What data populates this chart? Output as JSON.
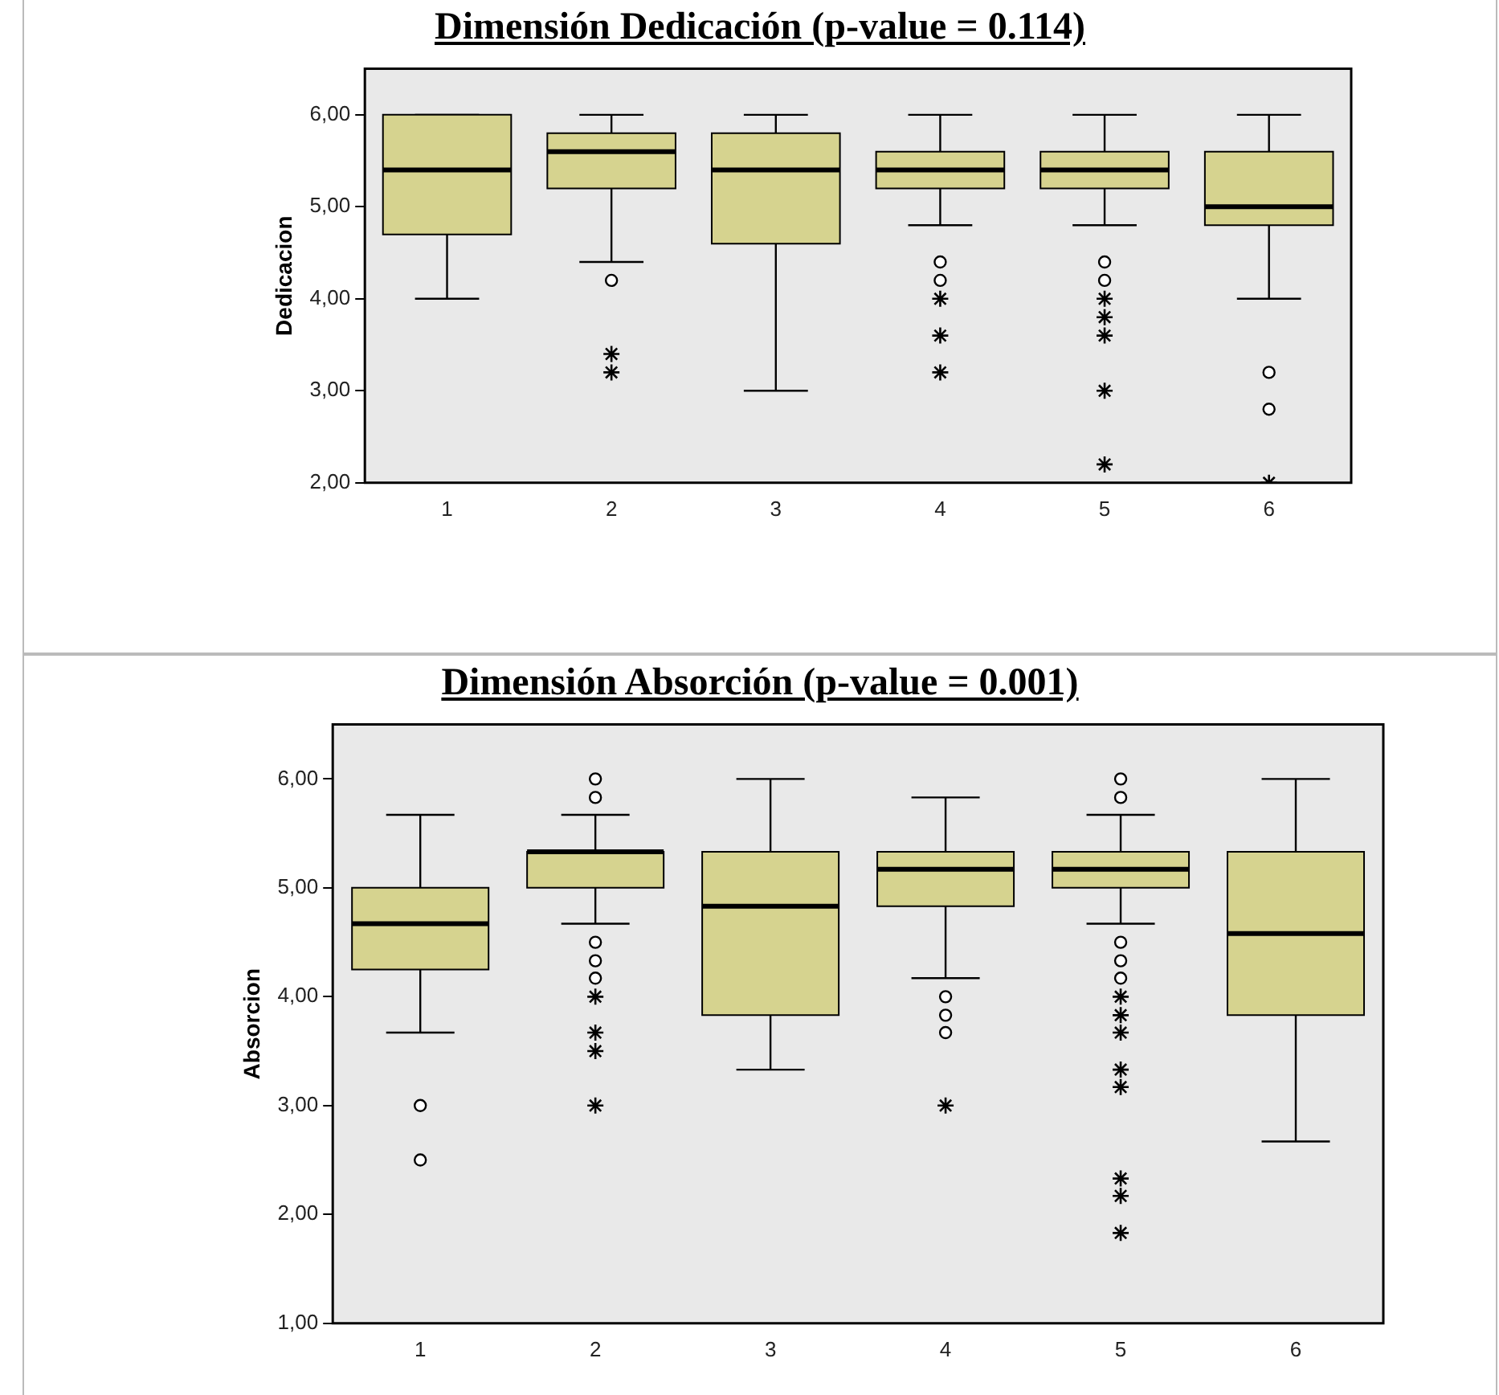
{
  "chart_data": [
    {
      "type": "box",
      "title": "Dimensión Dedicación (p-value = 0.114)",
      "ylabel": "Dedicacion",
      "categories": [
        "1",
        "2",
        "3",
        "4",
        "5",
        "6"
      ],
      "ylim": [
        2,
        6.5
      ],
      "yticks": [
        {
          "value": 2,
          "label": "2,00"
        },
        {
          "value": 3,
          "label": "3,00"
        },
        {
          "value": 4,
          "label": "4,00"
        },
        {
          "value": 5,
          "label": "5,00"
        },
        {
          "value": 6,
          "label": "6,00"
        }
      ],
      "grid": false,
      "series": [
        {
          "type": "box",
          "color": "#d6d38f",
          "boxes": [
            {
              "low": 4.0,
              "q1": 4.7,
              "median": 5.4,
              "q3": 6.0,
              "high": 6.0
            },
            {
              "low": 4.4,
              "q1": 5.2,
              "median": 5.6,
              "q3": 5.8,
              "high": 6.0,
              "outliers": [
                4.2
              ]
            },
            {
              "low": 3.0,
              "q1": 4.6,
              "median": 5.4,
              "q3": 5.8,
              "high": 6.0
            },
            {
              "low": 4.8,
              "q1": 5.2,
              "median": 5.4,
              "q3": 5.6,
              "high": 6.0,
              "outliers": [
                4.4,
                4.2
              ]
            },
            {
              "low": 4.8,
              "q1": 5.2,
              "median": 5.4,
              "q3": 5.6,
              "high": 6.0,
              "outliers": [
                4.4,
                4.2
              ]
            },
            {
              "low": 4.0,
              "q1": 4.8,
              "median": 5.0,
              "q3": 5.6,
              "high": 6.0,
              "outliers": [
                3.2,
                2.8
              ]
            }
          ]
        },
        {
          "type": "scatter",
          "marker": "cross",
          "color": "#000000",
          "x": [
            "2",
            "2",
            "4",
            "4",
            "4",
            "5",
            "5",
            "5",
            "5",
            "5",
            "6"
          ],
          "values": [
            3.4,
            3.2,
            4.0,
            3.6,
            3.2,
            4.0,
            3.8,
            3.6,
            3.0,
            2.2,
            2.0
          ]
        }
      ]
    },
    {
      "type": "box",
      "title": "Dimensión Absorción (p-value = 0.001)",
      "ylabel": "Absorcion",
      "categories": [
        "1",
        "2",
        "3",
        "4",
        "5",
        "6"
      ],
      "ylim": [
        1,
        6.5
      ],
      "yticks": [
        {
          "value": 1,
          "label": "1,00"
        },
        {
          "value": 2,
          "label": "2,00"
        },
        {
          "value": 3,
          "label": "3,00"
        },
        {
          "value": 4,
          "label": "4,00"
        },
        {
          "value": 5,
          "label": "5,00"
        },
        {
          "value": 6,
          "label": "6,00"
        }
      ],
      "grid": false,
      "series": [
        {
          "type": "box",
          "color": "#d6d38f",
          "boxes": [
            {
              "low": 3.67,
              "q1": 4.25,
              "median": 4.67,
              "q3": 5.0,
              "high": 5.67,
              "outliers": [
                3.0,
                2.5
              ]
            },
            {
              "low": 4.67,
              "q1": 5.0,
              "median": 5.33,
              "q3": 5.33,
              "high": 5.67,
              "outliers": [
                6.0,
                5.83,
                4.5,
                4.33,
                4.17
              ]
            },
            {
              "low": 3.33,
              "q1": 3.83,
              "median": 4.83,
              "q3": 5.33,
              "high": 6.0
            },
            {
              "low": 4.17,
              "q1": 4.83,
              "median": 5.17,
              "q3": 5.33,
              "high": 5.83,
              "outliers": [
                4.0,
                3.83,
                3.67
              ]
            },
            {
              "low": 4.67,
              "q1": 5.0,
              "median": 5.17,
              "q3": 5.33,
              "high": 5.67,
              "outliers": [
                6.0,
                5.83,
                4.5,
                4.33,
                4.17
              ]
            },
            {
              "low": 2.67,
              "q1": 3.83,
              "median": 4.58,
              "q3": 5.33,
              "high": 6.0
            }
          ]
        },
        {
          "type": "scatter",
          "marker": "cross",
          "color": "#000000",
          "x": [
            "2",
            "2",
            "2",
            "2",
            "4",
            "5",
            "5",
            "5",
            "5",
            "5",
            "5",
            "5",
            "5"
          ],
          "values": [
            4.0,
            3.67,
            3.5,
            3.0,
            3.0,
            4.0,
            3.83,
            3.67,
            3.33,
            3.17,
            2.33,
            2.17,
            1.83
          ]
        }
      ]
    }
  ]
}
